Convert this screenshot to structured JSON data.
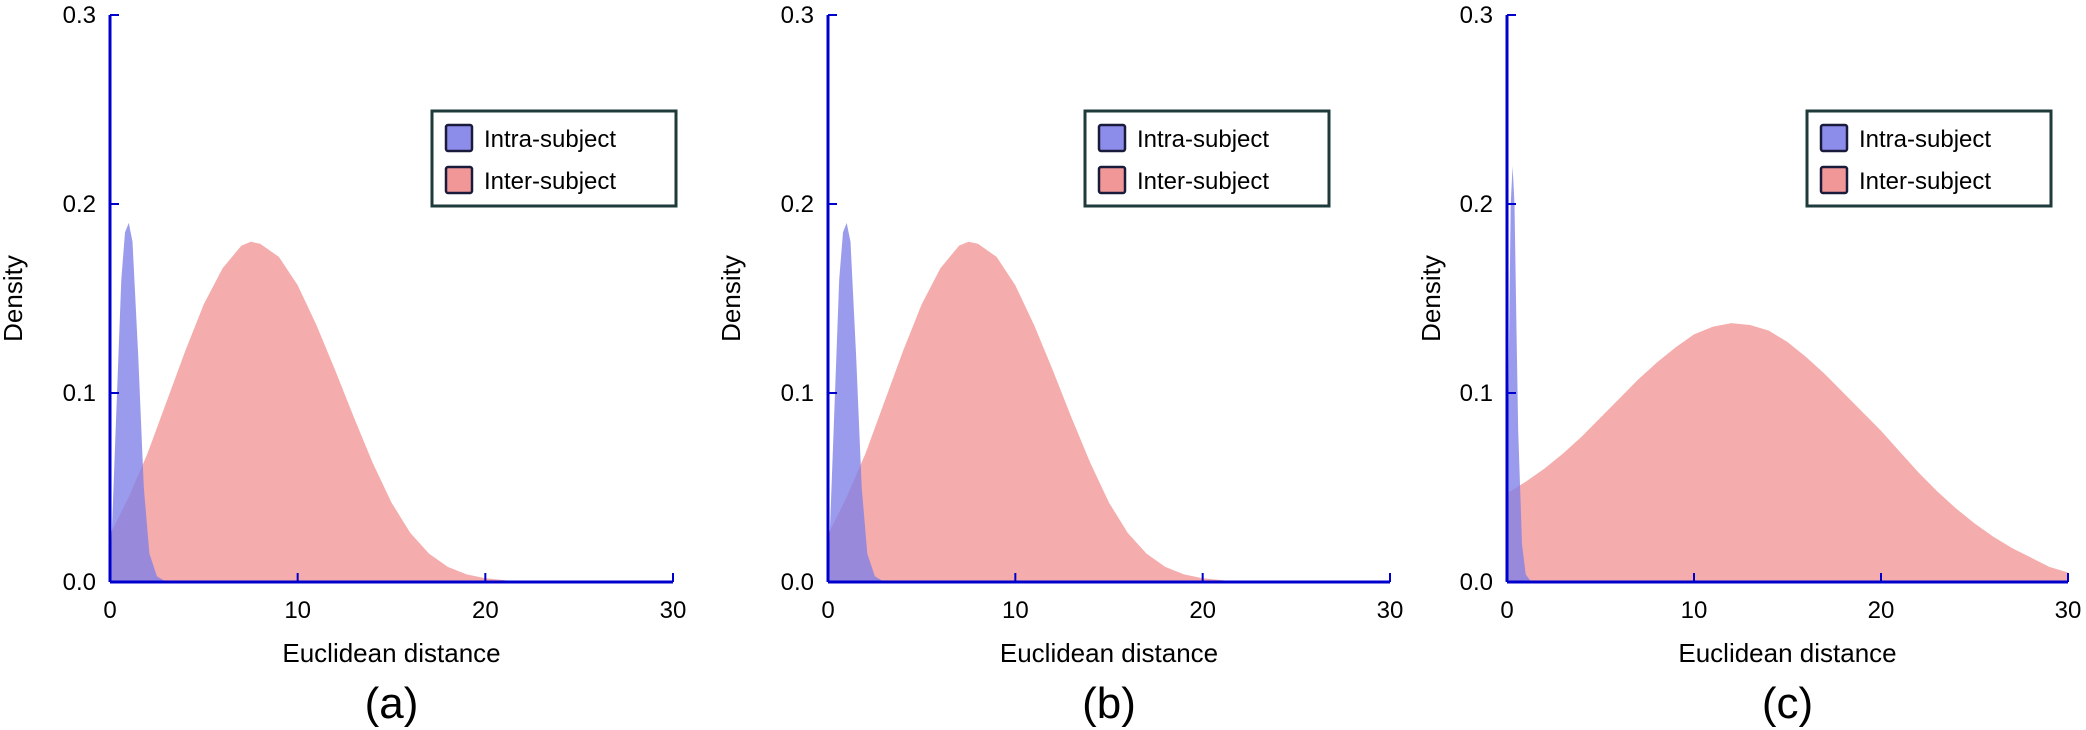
{
  "colors": {
    "axis": "#0000cc",
    "intra_fill": "#7f7fe8",
    "intra_edge": "#2a2ac0",
    "inter_fill": "#f08c8c",
    "inter_edge": "#e07070",
    "legend_border": "#1f3a3a"
  },
  "legend_entries": [
    "Intra-subject",
    "Inter-subject"
  ],
  "chart_data": [
    {
      "type": "area",
      "panel_label": "(a)",
      "xlabel": "Euclidean distance",
      "ylabel": "Density",
      "xlim": [
        0,
        30
      ],
      "ylim": [
        0,
        0.3
      ],
      "x_ticks": [
        0,
        10,
        20,
        30
      ],
      "x_tick_labels": [
        "0",
        "10",
        "20",
        "30"
      ],
      "y_ticks": [
        0.0,
        0.1,
        0.2,
        0.3
      ],
      "y_tick_labels": [
        "0.0",
        "0.1",
        "0.2",
        "0.3"
      ],
      "legend_position": "top-right",
      "series": [
        {
          "name": "Intra-subject",
          "x": [
            0,
            0.3,
            0.6,
            0.8,
            1.0,
            1.2,
            1.5,
            1.8,
            2.1,
            2.5,
            3.0
          ],
          "values": [
            0.0,
            0.08,
            0.16,
            0.185,
            0.19,
            0.18,
            0.12,
            0.05,
            0.015,
            0.003,
            0.0
          ]
        },
        {
          "name": "Inter-subject",
          "x": [
            0,
            1,
            2,
            3,
            4,
            5,
            6,
            7,
            7.5,
            8,
            9,
            10,
            11,
            12,
            13,
            14,
            15,
            16,
            17,
            18,
            19,
            20,
            21,
            22,
            25,
            30
          ],
          "values": [
            0.025,
            0.045,
            0.068,
            0.095,
            0.122,
            0.147,
            0.166,
            0.178,
            0.18,
            0.179,
            0.172,
            0.157,
            0.136,
            0.112,
            0.087,
            0.063,
            0.042,
            0.026,
            0.015,
            0.008,
            0.004,
            0.002,
            0.001,
            0.0,
            0.0,
            0.0
          ]
        }
      ]
    },
    {
      "type": "area",
      "panel_label": "(b)",
      "xlabel": "Euclidean distance",
      "ylabel": "Density",
      "xlim": [
        0,
        30
      ],
      "ylim": [
        0,
        0.3
      ],
      "x_ticks": [
        0,
        10,
        20,
        30
      ],
      "x_tick_labels": [
        "0",
        "10",
        "20",
        "30"
      ],
      "y_ticks": [
        0.0,
        0.1,
        0.2,
        0.3
      ],
      "y_tick_labels": [
        "0.0",
        "0.1",
        "0.2",
        "0.3"
      ],
      "legend_position": "top-right",
      "series": [
        {
          "name": "Intra-subject",
          "x": [
            0,
            0.3,
            0.6,
            0.8,
            1.0,
            1.2,
            1.5,
            1.8,
            2.1,
            2.5,
            3.0
          ],
          "values": [
            0.0,
            0.08,
            0.16,
            0.185,
            0.19,
            0.18,
            0.12,
            0.05,
            0.015,
            0.003,
            0.0
          ]
        },
        {
          "name": "Inter-subject",
          "x": [
            0,
            1,
            2,
            3,
            4,
            5,
            6,
            7,
            7.5,
            8,
            9,
            10,
            11,
            12,
            13,
            14,
            15,
            16,
            17,
            18,
            19,
            20,
            21,
            22,
            25,
            30
          ],
          "values": [
            0.025,
            0.045,
            0.068,
            0.095,
            0.122,
            0.147,
            0.166,
            0.178,
            0.18,
            0.179,
            0.172,
            0.157,
            0.136,
            0.112,
            0.087,
            0.063,
            0.042,
            0.026,
            0.015,
            0.008,
            0.004,
            0.002,
            0.001,
            0.0,
            0.0,
            0.0
          ]
        }
      ]
    },
    {
      "type": "area",
      "panel_label": "(c)",
      "xlabel": "Euclidean distance",
      "ylabel": "Density",
      "xlim": [
        0,
        30
      ],
      "ylim": [
        0,
        0.3
      ],
      "x_ticks": [
        0,
        10,
        20,
        30
      ],
      "x_tick_labels": [
        "0",
        "10",
        "20",
        "30"
      ],
      "y_ticks": [
        0.0,
        0.1,
        0.2,
        0.3
      ],
      "y_tick_labels": [
        "0.0",
        "0.1",
        "0.2",
        "0.3"
      ],
      "legend_position": "top-right",
      "series": [
        {
          "name": "Intra-subject",
          "x": [
            0,
            0.1,
            0.2,
            0.3,
            0.4,
            0.5,
            0.6,
            0.8,
            1.0,
            1.3
          ],
          "values": [
            0.0,
            0.12,
            0.2,
            0.22,
            0.2,
            0.14,
            0.08,
            0.02,
            0.004,
            0.0
          ]
        },
        {
          "name": "Inter-subject",
          "x": [
            0,
            1,
            2,
            3,
            4,
            5,
            6,
            7,
            8,
            9,
            10,
            11,
            12,
            13,
            14,
            15,
            16,
            17,
            18,
            19,
            20,
            21,
            22,
            23,
            24,
            25,
            26,
            27,
            28,
            29,
            30
          ],
          "values": [
            0.047,
            0.053,
            0.06,
            0.068,
            0.077,
            0.087,
            0.097,
            0.107,
            0.116,
            0.124,
            0.131,
            0.135,
            0.137,
            0.136,
            0.133,
            0.127,
            0.119,
            0.11,
            0.1,
            0.09,
            0.08,
            0.069,
            0.058,
            0.048,
            0.039,
            0.031,
            0.024,
            0.018,
            0.013,
            0.008,
            0.005
          ]
        }
      ]
    }
  ]
}
